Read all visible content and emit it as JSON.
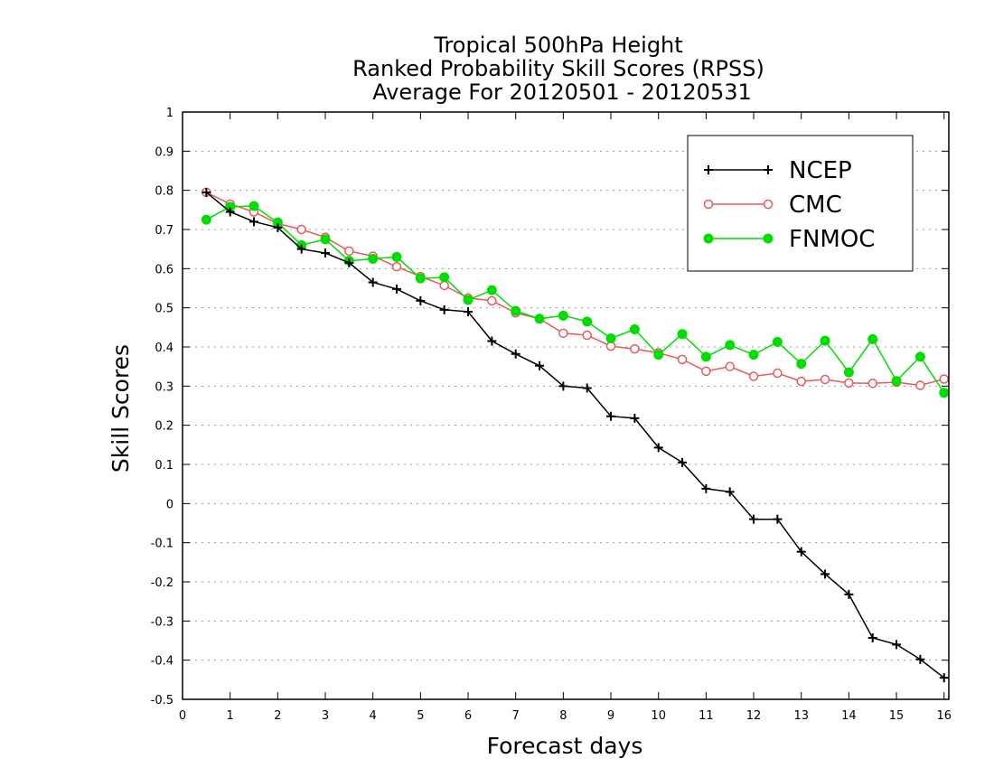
{
  "chart_data": {
    "type": "line",
    "title": [
      "Tropical 500hPa Height",
      "Ranked Probability Skill Scores (RPSS)",
      "Average For 20120501 - 20120531"
    ],
    "xlabel": "Forecast days",
    "ylabel": "Skill Scores",
    "xlim": [
      0,
      16.1
    ],
    "ylim": [
      -0.5,
      1
    ],
    "xticks": [
      0,
      1,
      2,
      3,
      4,
      5,
      6,
      7,
      8,
      9,
      10,
      11,
      12,
      13,
      14,
      15,
      16
    ],
    "xtick_labels": [
      "0",
      "1",
      "2",
      "3",
      "4",
      "5",
      "6",
      "7",
      "8",
      "9",
      "10",
      "11",
      "12",
      "13",
      "14",
      "15",
      "16"
    ],
    "yticks": [
      -0.5,
      -0.4,
      -0.3,
      -0.2,
      -0.1,
      0,
      0.1,
      0.2,
      0.3,
      0.4,
      0.5,
      0.6,
      0.7,
      0.8,
      0.9,
      1
    ],
    "ytick_labels": [
      "-0.5",
      "-0.4",
      "-0.3",
      "-0.2",
      "-0.1",
      "0",
      "0.1",
      "0.2",
      "0.3",
      "0.4",
      "0.5",
      "0.6",
      "0.7",
      "0.8",
      "0.9",
      "1"
    ],
    "grid": "horizontal-dotted",
    "legend_position": "top-right",
    "x": [
      0.5,
      1,
      1.5,
      2,
      2.5,
      3,
      3.5,
      4,
      4.5,
      5,
      5.5,
      6,
      6.5,
      7,
      7.5,
      8,
      8.5,
      9,
      9.5,
      10,
      10.5,
      11,
      11.5,
      12,
      12.5,
      13,
      13.5,
      14,
      14.5,
      15,
      15.5,
      16
    ],
    "series": [
      {
        "name": "NCEP",
        "color": "#000000",
        "marker": "plus",
        "values": [
          0.795,
          0.745,
          0.72,
          0.705,
          0.65,
          0.64,
          0.615,
          0.565,
          0.548,
          0.518,
          0.495,
          0.49,
          0.415,
          0.382,
          0.352,
          0.3,
          0.295,
          0.223,
          0.218,
          0.143,
          0.105,
          0.038,
          0.03,
          -0.04,
          -0.04,
          -0.123,
          -0.18,
          -0.232,
          -0.343,
          -0.36,
          -0.398,
          -0.445
        ]
      },
      {
        "name": "CMC",
        "color": "#e85a5a",
        "marker": "open-circle",
        "values": [
          0.795,
          0.765,
          0.745,
          0.715,
          0.7,
          0.68,
          0.645,
          0.632,
          0.605,
          0.58,
          0.557,
          0.525,
          0.518,
          0.487,
          0.472,
          0.435,
          0.43,
          0.402,
          0.395,
          0.385,
          0.368,
          0.338,
          0.35,
          0.325,
          0.333,
          0.312,
          0.317,
          0.308,
          0.307,
          0.31,
          0.302,
          0.318
        ]
      },
      {
        "name": "FNMOC",
        "color": "#00dd00",
        "marker": "filled-circle",
        "values": [
          0.725,
          0.758,
          0.76,
          0.718,
          0.66,
          0.675,
          0.62,
          0.625,
          0.63,
          0.575,
          0.578,
          0.52,
          0.545,
          0.492,
          0.472,
          0.48,
          0.465,
          0.422,
          0.445,
          0.38,
          0.433,
          0.375,
          0.405,
          0.38,
          0.413,
          0.357,
          0.416,
          0.335,
          0.42,
          0.313,
          0.375,
          0.283
        ]
      }
    ]
  }
}
